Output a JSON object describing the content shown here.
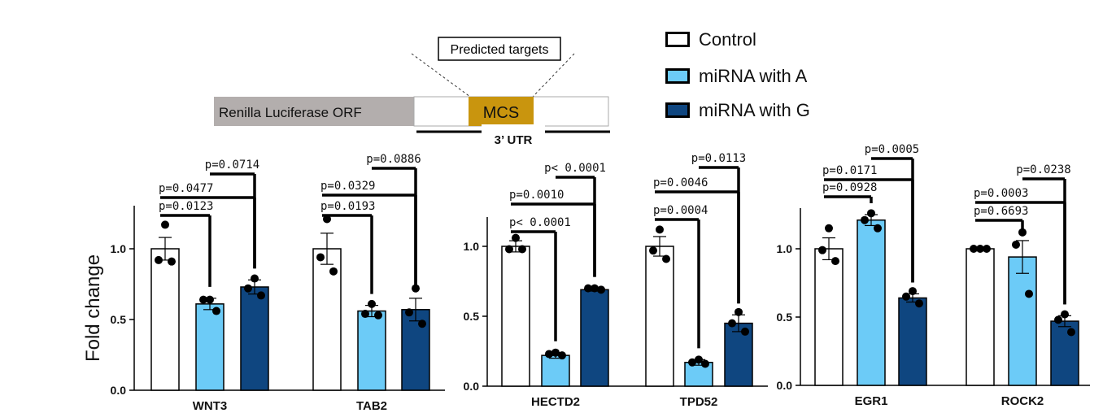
{
  "colors": {
    "control": "#ffffff",
    "miRNA_A": "#6ccbf7",
    "miRNA_G": "#0f4680",
    "orf_gray": "#b3aead",
    "mcs_gold": "#c9950e"
  },
  "construct": {
    "orf_label": "Renilla Luciferase ORF",
    "mcs_label": "MCS",
    "targets_label": "Predicted targets",
    "utr_label": "3’ UTR"
  },
  "legend": [
    {
      "label": "Control",
      "color": "#ffffff"
    },
    {
      "label": "miRNA with A",
      "color": "#6ccbf7"
    },
    {
      "label": "miRNA with G",
      "color": "#0f4680"
    }
  ],
  "chart_data": [
    {
      "type": "bar",
      "ylabel": "Fold change",
      "ylim": [
        0,
        1.3
      ],
      "yticks": [
        "0.0",
        "0.5",
        "1.0"
      ],
      "series_names": [
        "Control",
        "miRNA with A",
        "miRNA with G"
      ],
      "groups": [
        {
          "gene": "WNT3",
          "values": [
            1.0,
            0.61,
            0.73
          ],
          "errors": [
            0.08,
            0.04,
            0.05
          ],
          "points": [
            [
              1.17,
              0.92,
              0.91
            ],
            [
              0.64,
              0.64,
              0.56
            ],
            [
              0.79,
              0.72,
              0.67
            ]
          ],
          "comparisons": [
            {
              "label": "p=0.0123",
              "from": 0,
              "to": 1
            },
            {
              "label": "p=0.0477",
              "from": 0,
              "to": 2
            },
            {
              "label": "p=0.0714",
              "from": 1,
              "to": 2
            }
          ]
        },
        {
          "gene": "TAB2",
          "values": [
            1.0,
            0.56,
            0.57
          ],
          "errors": [
            0.11,
            0.04,
            0.08
          ],
          "points": [
            [
              1.21,
              0.94,
              0.84
            ],
            [
              0.61,
              0.54,
              0.53
            ],
            [
              0.72,
              0.55,
              0.47
            ]
          ],
          "comparisons": [
            {
              "label": "p=0.0193",
              "from": 0,
              "to": 1
            },
            {
              "label": "p=0.0329",
              "from": 0,
              "to": 2
            },
            {
              "label": "p=0.0886",
              "from": 1,
              "to": 2
            }
          ]
        }
      ]
    },
    {
      "type": "bar",
      "ylabel": "",
      "ylim": [
        0,
        1.22
      ],
      "yticks": [
        "0.0",
        "0.5",
        "1.0"
      ],
      "series_names": [
        "Control",
        "miRNA with A",
        "miRNA with G"
      ],
      "groups": [
        {
          "gene": "HECTD2",
          "values": [
            1.0,
            0.22,
            0.69
          ],
          "errors": [
            0.04,
            0.02,
            0.01
          ],
          "points": [
            [
              1.06,
              0.98,
              0.98
            ],
            [
              0.24,
              0.23,
              0.22
            ],
            [
              0.7,
              0.7,
              0.69
            ]
          ],
          "comparisons": [
            {
              "label": "p< 0.0001",
              "from": 0,
              "to": 1
            },
            {
              "label": "p=0.0010",
              "from": 0,
              "to": 2
            },
            {
              "label": "p< 0.0001",
              "from": 1,
              "to": 2
            }
          ]
        },
        {
          "gene": "TPD52",
          "values": [
            1.0,
            0.17,
            0.45
          ],
          "errors": [
            0.07,
            0.02,
            0.06
          ],
          "points": [
            [
              1.12,
              0.97,
              0.91
            ],
            [
              0.19,
              0.17,
              0.16
            ],
            [
              0.53,
              0.45,
              0.39
            ]
          ],
          "comparisons": [
            {
              "label": "p=0.0004",
              "from": 0,
              "to": 1
            },
            {
              "label": "p=0.0046",
              "from": 0,
              "to": 2
            },
            {
              "label": "p=0.0113",
              "from": 1,
              "to": 2
            }
          ]
        }
      ]
    },
    {
      "type": "bar",
      "ylabel": "",
      "ylim": [
        0,
        1.26
      ],
      "yticks": [
        "0.0",
        "0.5",
        "1.0"
      ],
      "series_names": [
        "Control",
        "miRNA with A",
        "miRNA with G"
      ],
      "groups": [
        {
          "gene": "EGR1",
          "values": [
            1.0,
            1.21,
            0.64
          ],
          "errors": [
            0.08,
            0.04,
            0.03
          ],
          "points": [
            [
              1.15,
              0.99,
              0.91
            ],
            [
              1.26,
              1.21,
              1.15
            ],
            [
              0.69,
              0.65,
              0.6
            ]
          ],
          "comparisons": [
            {
              "label": "p=0.0928",
              "from": 0,
              "to": 1
            },
            {
              "label": "p=0.0171",
              "from": 0,
              "to": 2
            },
            {
              "label": "p=0.0005",
              "from": 1,
              "to": 2
            }
          ]
        },
        {
          "gene": "ROCK2",
          "values": [
            1.0,
            0.94,
            0.47
          ],
          "errors": [
            0.01,
            0.12,
            0.04
          ],
          "points": [
            [
              1.0,
              1.0,
              1.0
            ],
            [
              1.12,
              1.03,
              0.67
            ],
            [
              0.52,
              0.48,
              0.39
            ]
          ],
          "comparisons": [
            {
              "label": "p=0.6693",
              "from": 0,
              "to": 1
            },
            {
              "label": "p=0.0003",
              "from": 0,
              "to": 2
            },
            {
              "label": "p=0.0238",
              "from": 1,
              "to": 2
            }
          ]
        }
      ]
    }
  ]
}
